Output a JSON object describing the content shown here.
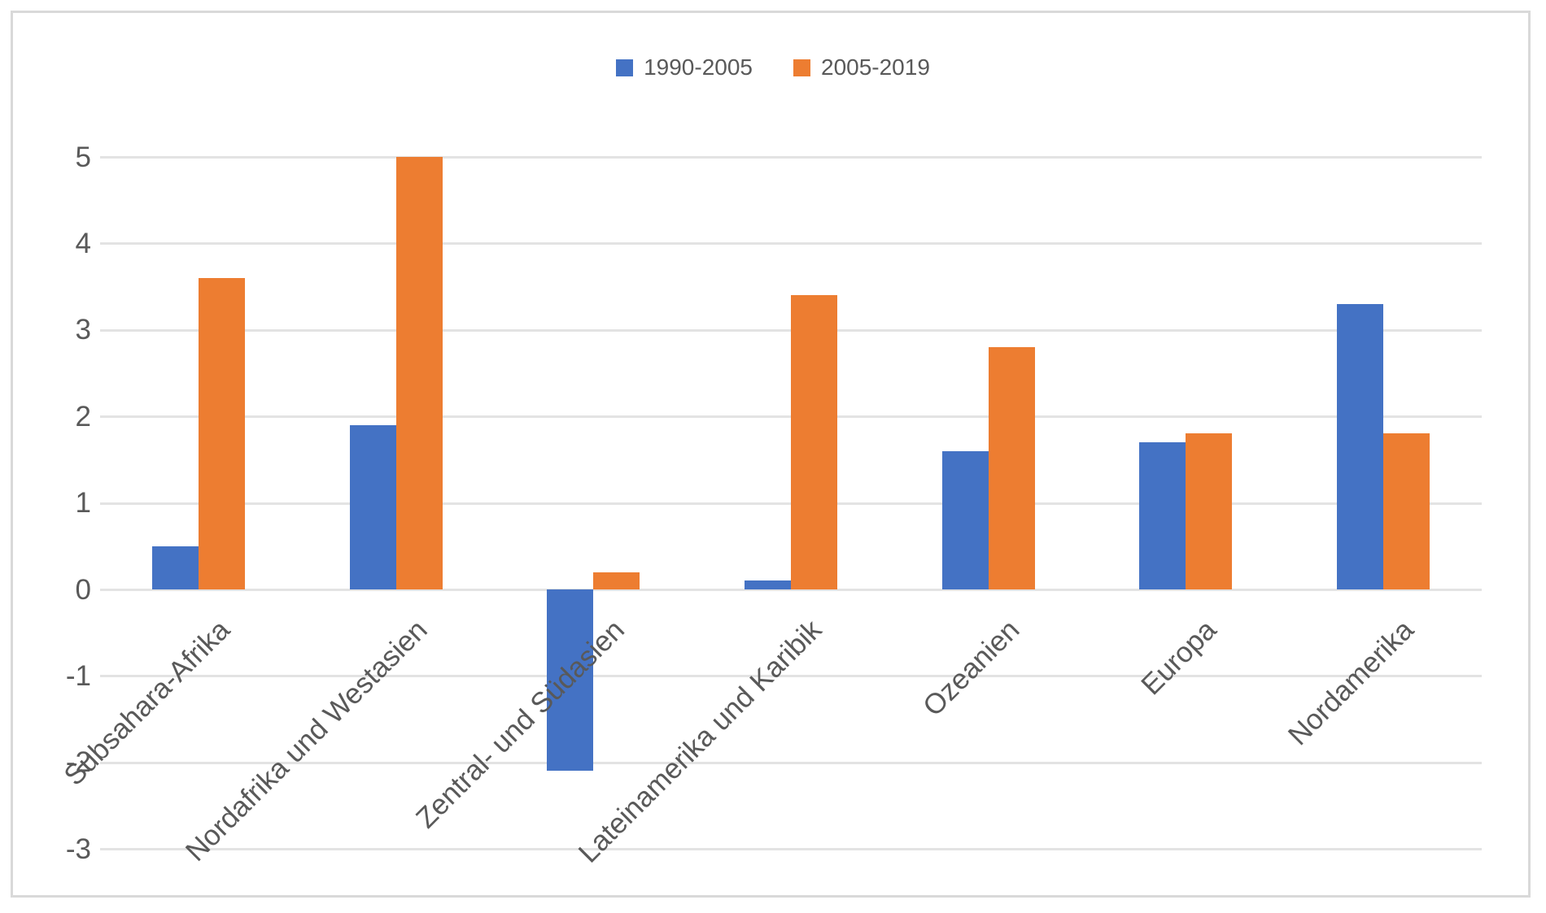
{
  "chart_data": {
    "type": "bar",
    "title": "",
    "xlabel": "",
    "ylabel": "",
    "categories": [
      "Subsahara-Afrika",
      "Nordafrika und Westasien",
      "Zentral- und Südasien",
      "Lateinamerika und Karibik",
      "Ozeanien",
      "Europa",
      "Nordamerika"
    ],
    "series": [
      {
        "name": "1990-2005",
        "color": "#4472C4",
        "values": [
          0.5,
          1.9,
          -2.1,
          0.1,
          1.6,
          1.7,
          3.3
        ]
      },
      {
        "name": "2005-2019",
        "color": "#ED7D31",
        "values": [
          3.6,
          5.0,
          0.2,
          3.4,
          2.8,
          1.8,
          1.8
        ]
      }
    ],
    "ylim": [
      -3,
      5
    ],
    "yticks": [
      5,
      4,
      3,
      2,
      1,
      0,
      -1,
      -2,
      -3
    ],
    "grid": "horizontal",
    "legend_position": "top-center",
    "colors": {
      "gridline": "#E3E3E3",
      "frame_border": "#D9D9D9",
      "axis_text": "#595959",
      "background": "#FFFFFF"
    }
  }
}
